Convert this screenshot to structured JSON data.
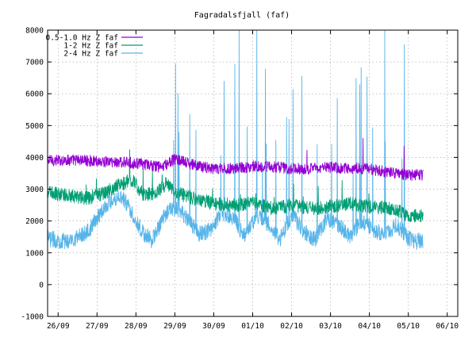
{
  "chart_data": {
    "type": "line",
    "title": "Fagradalsfjall (faf)",
    "xlabel": "",
    "ylabel": "",
    "x_tick_labels": [
      "26/09",
      "27/09",
      "28/09",
      "29/09",
      "30/09",
      "01/10",
      "02/10",
      "03/10",
      "04/10",
      "05/10",
      "06/10"
    ],
    "x_ticks_days": [
      0,
      1,
      2,
      3,
      4,
      5,
      6,
      7,
      8,
      9,
      10
    ],
    "xlim_days": [
      -0.27,
      10.27
    ],
    "data_end_day": 9.38,
    "y_ticks": [
      -1000,
      0,
      1000,
      2000,
      3000,
      4000,
      5000,
      6000,
      7000,
      8000
    ],
    "ylim": [
      -1000,
      8000
    ],
    "grid": true,
    "legend_position": "top-left",
    "series": [
      {
        "name": "0.5-1.0 Hz Z faf",
        "color": "#9400d3",
        "x_days": [
          -0.27,
          0.5,
          1.0,
          1.5,
          2.0,
          2.5,
          2.7,
          3.0,
          3.5,
          4.0,
          4.5,
          5.0,
          5.5,
          6.0,
          6.5,
          7.0,
          7.5,
          8.0,
          8.5,
          9.0,
          9.38
        ],
        "y": [
          3900,
          3920,
          3880,
          3850,
          3820,
          3720,
          3700,
          3950,
          3750,
          3640,
          3650,
          3720,
          3700,
          3650,
          3640,
          3690,
          3650,
          3640,
          3520,
          3440,
          3450
        ]
      },
      {
        "name": "1-2 Hz Z faf",
        "color": "#009e73",
        "x_days": [
          -0.27,
          0.3,
          0.7,
          1.0,
          1.3,
          1.6,
          1.9,
          2.2,
          2.5,
          2.8,
          3.0,
          3.5,
          4.0,
          4.5,
          5.0,
          5.5,
          6.0,
          6.5,
          7.0,
          7.5,
          8.0,
          8.5,
          9.0,
          9.38
        ],
        "y": [
          2900,
          2800,
          2720,
          2800,
          2950,
          3150,
          3300,
          2800,
          2900,
          3200,
          2900,
          2700,
          2550,
          2500,
          2550,
          2400,
          2500,
          2400,
          2450,
          2550,
          2450,
          2400,
          2200,
          2150
        ]
      },
      {
        "name": "2-4 Hz Z faf",
        "color": "#56b4e9",
        "x_days": [
          -0.27,
          0.2,
          0.5,
          0.8,
          1.0,
          1.3,
          1.6,
          1.8,
          2.0,
          2.2,
          2.4,
          2.6,
          2.8,
          3.0,
          3.3,
          3.6,
          3.9,
          4.2,
          4.5,
          4.8,
          5.1,
          5.4,
          5.7,
          6.0,
          6.3,
          6.6,
          6.9,
          7.2,
          7.5,
          7.8,
          8.1,
          8.4,
          8.7,
          9.0,
          9.2,
          9.38
        ],
        "y": [
          1450,
          1350,
          1500,
          1700,
          2100,
          2600,
          2800,
          2500,
          2000,
          1600,
          1400,
          1800,
          2300,
          2400,
          2100,
          1600,
          1700,
          2300,
          2100,
          1500,
          2200,
          1900,
          1400,
          2200,
          1700,
          1400,
          2100,
          1900,
          1500,
          2000,
          1750,
          1550,
          1900,
          1450,
          1350,
          1400
        ]
      }
    ]
  }
}
